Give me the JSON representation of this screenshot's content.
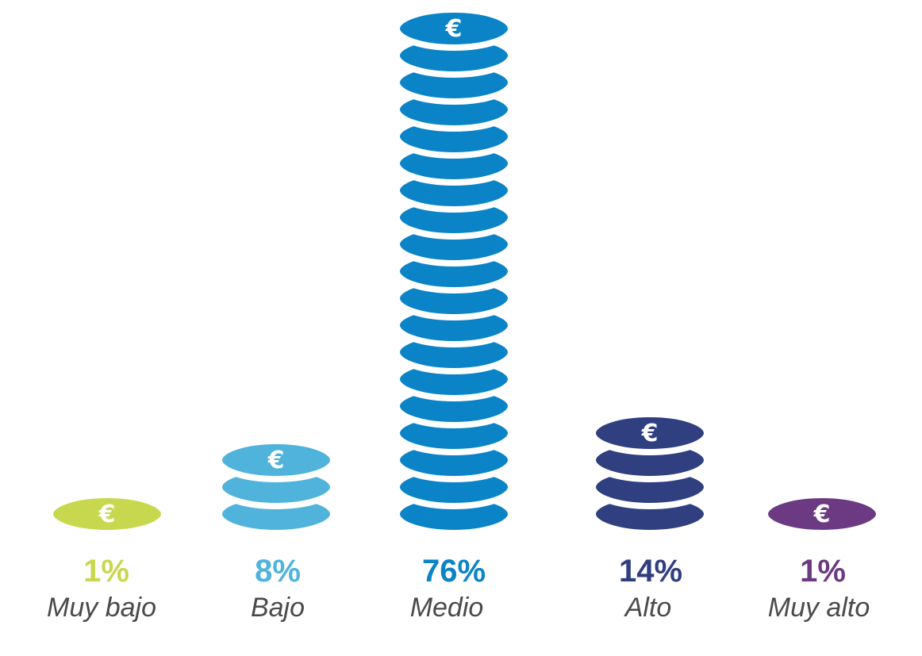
{
  "chart_data": {
    "type": "bar",
    "categories": [
      "Muy bajo",
      "Bajo",
      "Medio",
      "Alto",
      "Muy alto"
    ],
    "values": [
      1,
      8,
      76,
      14,
      1
    ],
    "value_labels": [
      "1%",
      "8%",
      "76%",
      "14%",
      "1%"
    ],
    "coin_counts": [
      1,
      3,
      19,
      4,
      1
    ],
    "colors": [
      "#c8d84e",
      "#4fb3dc",
      "#0a84c7",
      "#2f3f80",
      "#6b3a82"
    ],
    "coin_icon": "euro-symbol",
    "grid": false,
    "legend": "none"
  }
}
